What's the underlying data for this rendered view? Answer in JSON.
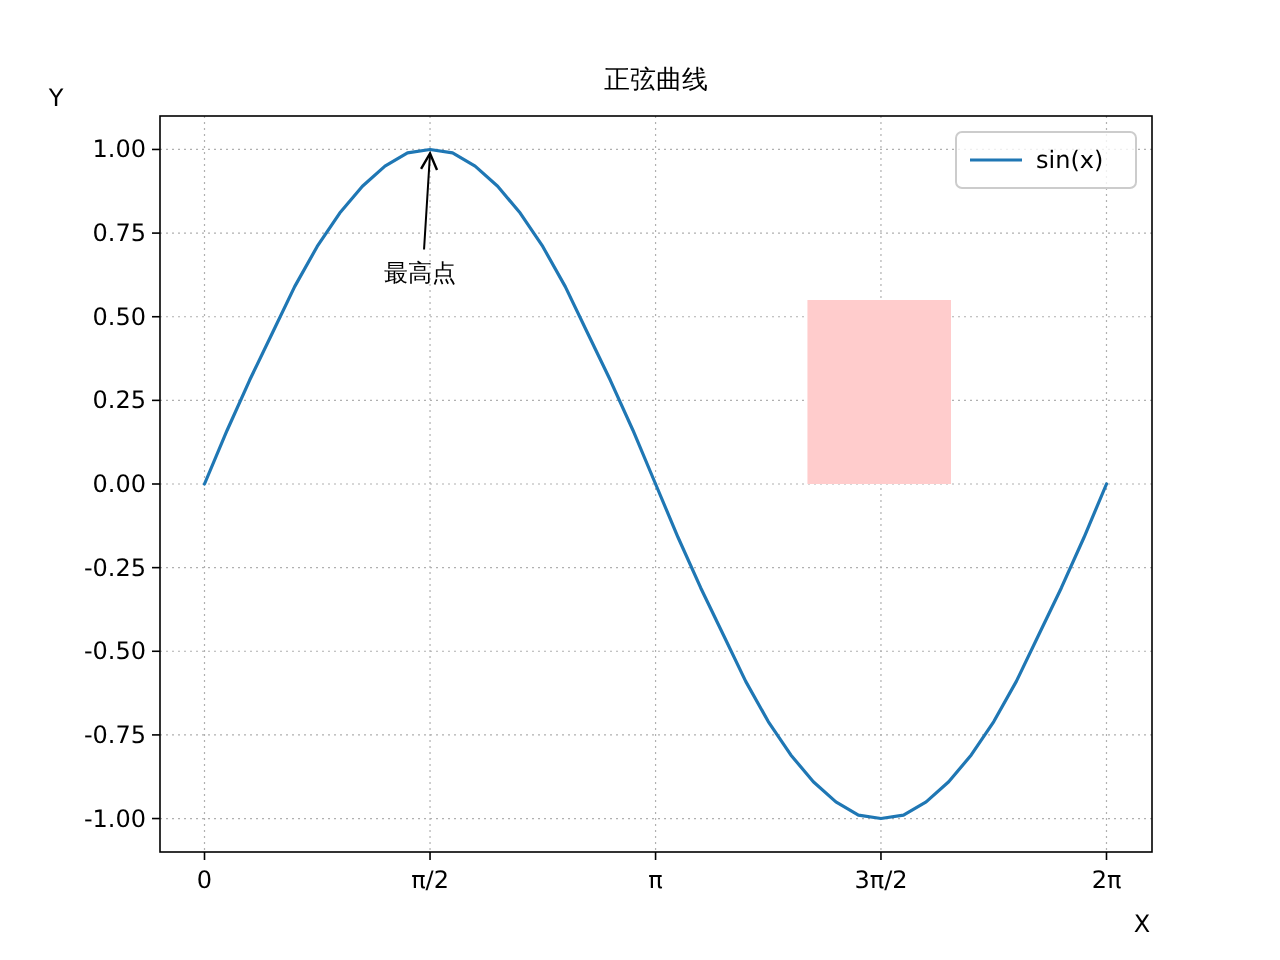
{
  "chart_data": {
    "type": "line",
    "title": "正弦曲线",
    "xlabel": "X",
    "ylabel": "Y",
    "x": [
      0,
      0.157,
      0.314,
      0.471,
      0.628,
      0.785,
      0.942,
      1.1,
      1.257,
      1.414,
      1.571,
      1.728,
      1.885,
      2.042,
      2.199,
      2.356,
      2.513,
      2.67,
      2.827,
      2.985,
      3.142,
      3.299,
      3.456,
      3.613,
      3.77,
      3.927,
      4.084,
      4.241,
      4.398,
      4.555,
      4.712,
      4.869,
      5.027,
      5.184,
      5.341,
      5.498,
      5.655,
      5.812,
      5.969,
      6.126,
      6.283
    ],
    "series": [
      {
        "name": "sin(x)",
        "color": "#1f77b4",
        "values": [
          0,
          0.16,
          0.31,
          0.45,
          0.59,
          0.71,
          0.81,
          0.89,
          0.95,
          0.99,
          1.0,
          0.99,
          0.95,
          0.89,
          0.81,
          0.71,
          0.59,
          0.45,
          0.31,
          0.16,
          0,
          -0.16,
          -0.31,
          -0.45,
          -0.59,
          -0.71,
          -0.81,
          -0.89,
          -0.95,
          -0.99,
          -1.0,
          -0.99,
          -0.95,
          -0.89,
          -0.81,
          -0.71,
          -0.59,
          -0.45,
          -0.31,
          -0.16,
          0
        ]
      },
      {
        "type": "area",
        "color": "#ffcccc",
        "x": [
          4.2,
          5.2
        ],
        "values": [
          0.55,
          0.55
        ]
      }
    ],
    "xlim": [
      -0.31,
      6.6
    ],
    "ylim": [
      -1.1,
      1.1
    ],
    "xticks": [
      {
        "value": 0,
        "label": "0"
      },
      {
        "value": 1.571,
        "label": "π/2"
      },
      {
        "value": 3.142,
        "label": "π"
      },
      {
        "value": 4.712,
        "label": "3π/2"
      },
      {
        "value": 6.283,
        "label": "2π"
      }
    ],
    "yticks": [
      {
        "value": -1,
        "label": "-1.00"
      },
      {
        "value": -0.75,
        "label": "-0.75"
      },
      {
        "value": -0.5,
        "label": "-0.50"
      },
      {
        "value": -0.25,
        "label": "-0.25"
      },
      {
        "value": 0,
        "label": "0.00"
      },
      {
        "value": 0.25,
        "label": "0.25"
      },
      {
        "value": 0.5,
        "label": "0.50"
      },
      {
        "value": 0.75,
        "label": "0.75"
      },
      {
        "value": 1,
        "label": "1.00"
      }
    ],
    "grid": true,
    "legend": "top right",
    "annotations": [
      {
        "text": "最高点",
        "x": 1.571,
        "y": 1
      }
    ]
  }
}
